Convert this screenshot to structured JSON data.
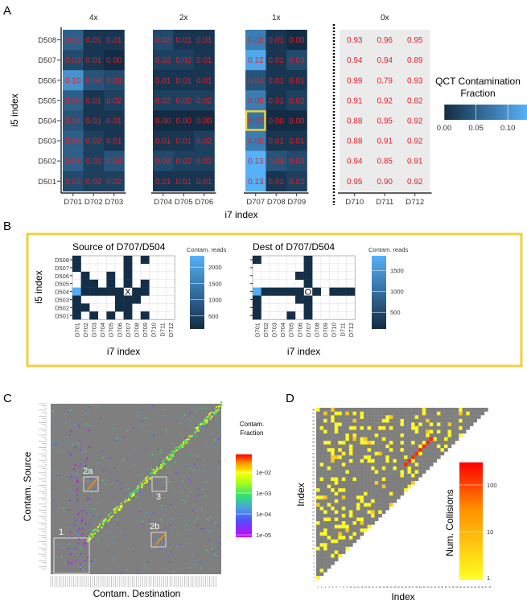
{
  "panel_labels": {
    "a": "A",
    "b": "B",
    "c": "C",
    "d": "D"
  },
  "colors": {
    "low": "#132B43",
    "high": "#56B1F7",
    "text": "#E0202A",
    "highlight": "#F0D040",
    "panel_bg": "#EBEBEB",
    "plot_gray": "#7F7F7F"
  },
  "chart_data": [
    {
      "type": "heatmap",
      "id": "A",
      "xlabel": "i7 index",
      "ylabel": "i5 index",
      "rows": [
        "D508",
        "D507",
        "D506",
        "D505",
        "D504",
        "D503",
        "D502",
        "D501"
      ],
      "legend": {
        "title_line1": "QCT Contamination",
        "title_line2": "Fraction",
        "ticks": [
          "0.00",
          "0.05",
          "0.10"
        ],
        "range": [
          0,
          0.13
        ]
      },
      "highlight": {
        "row": "D504",
        "col": "D707"
      },
      "facets": [
        {
          "label": "4x",
          "cols": [
            "D701",
            "D702",
            "D703"
          ],
          "values": [
            [
              0.05,
              0.01,
              0.01
            ],
            [
              0.03,
              0.01,
              0.0
            ],
            [
              0.1,
              0.04,
              0.03
            ],
            [
              0.05,
              0.01,
              0.02
            ],
            [
              0.04,
              0.01,
              0.01
            ],
            [
              0.05,
              0.02,
              0.01
            ],
            [
              0.05,
              0.02,
              0.04
            ],
            [
              0.03,
              0.02,
              0.02
            ]
          ]
        },
        {
          "label": "2x",
          "cols": [
            "D704",
            "D705",
            "D706"
          ],
          "values": [
            [
              0.03,
              0.01,
              0.01
            ],
            [
              0.02,
              0.02,
              0.01
            ],
            [
              0.01,
              0.01,
              0.01
            ],
            [
              0.02,
              0.02,
              0.02
            ],
            [
              0.0,
              0.0,
              0.0
            ],
            [
              0.01,
              0.01,
              0.02
            ],
            [
              0.03,
              0.02,
              0.02
            ],
            [
              0.01,
              0.01,
              0.01
            ]
          ]
        },
        {
          "label": "1x",
          "cols": [
            "D707",
            "D708",
            "D709"
          ],
          "values": [
            [
              0.08,
              0.01,
              0.0
            ],
            [
              0.12,
              0.01,
              0.03
            ],
            [
              0.04,
              0.01,
              0.01
            ],
            [
              0.08,
              0.01,
              0.02
            ],
            [
              0.07,
              0.0,
              0.0
            ],
            [
              0.08,
              0.01,
              0.01
            ],
            [
              0.13,
              0.04,
              0.03
            ],
            [
              0.13,
              0.01,
              0.02
            ]
          ]
        },
        {
          "label": "0x",
          "cols": [
            "D710",
            "D711",
            "D712"
          ],
          "gray": true,
          "values": [
            [
              0.93,
              0.96,
              0.95
            ],
            [
              0.94,
              0.94,
              0.89
            ],
            [
              0.99,
              0.79,
              0.93
            ],
            [
              0.91,
              0.92,
              0.82
            ],
            [
              0.88,
              0.95,
              0.92
            ],
            [
              0.88,
              0.91,
              0.92
            ],
            [
              0.94,
              0.85,
              0.91
            ],
            [
              0.95,
              0.9,
              0.92
            ]
          ]
        }
      ]
    },
    {
      "type": "heatmap",
      "id": "B-source",
      "title": "Source of D707/D504",
      "xlabel": "i7 index",
      "ylabel": "i5 index",
      "rows": [
        "D508",
        "D507",
        "D506",
        "D505",
        "D504",
        "D503",
        "D502",
        "D501"
      ],
      "cols": [
        "D701",
        "D702",
        "D703",
        "D704",
        "D705",
        "D706",
        "D707",
        "D708",
        "D709",
        "D710",
        "D711",
        "D712"
      ],
      "marker": {
        "text": "X",
        "row": "D504",
        "col": "D707"
      },
      "legend": {
        "title": "Contam. reads",
        "ticks": [
          500,
          1000,
          1500,
          2000
        ],
        "range": [
          100,
          2350
        ]
      },
      "values": [
        [
          150,
          0,
          0,
          0,
          0,
          0,
          150,
          0,
          150,
          0,
          0,
          0
        ],
        [
          150,
          0,
          0,
          0,
          0,
          0,
          150,
          0,
          0,
          0,
          0,
          0
        ],
        [
          0,
          150,
          0,
          0,
          150,
          0,
          150,
          0,
          0,
          0,
          0,
          0
        ],
        [
          0,
          150,
          150,
          0,
          150,
          0,
          150,
          0,
          150,
          0,
          0,
          0
        ],
        [
          2300,
          150,
          150,
          150,
          150,
          150,
          0,
          150,
          150,
          0,
          0,
          0
        ],
        [
          150,
          0,
          0,
          0,
          0,
          150,
          150,
          150,
          0,
          0,
          0,
          0
        ],
        [
          150,
          150,
          0,
          0,
          0,
          150,
          150,
          0,
          0,
          0,
          0,
          0
        ],
        [
          150,
          0,
          150,
          0,
          150,
          0,
          150,
          0,
          150,
          0,
          0,
          0
        ]
      ]
    },
    {
      "type": "heatmap",
      "id": "B-dest",
      "title": "Dest of D707/D504",
      "xlabel": "i7 index",
      "rows": [
        "D508",
        "D507",
        "D506",
        "D505",
        "D504",
        "D503",
        "D502",
        "D501"
      ],
      "cols": [
        "D701",
        "D702",
        "D703",
        "D704",
        "D705",
        "D706",
        "D707",
        "D708",
        "D709",
        "D710",
        "D711",
        "D712"
      ],
      "marker": {
        "text": "O",
        "row": "D504",
        "col": "D707"
      },
      "legend": {
        "title": "Contam. reads",
        "ticks": [
          500,
          1000,
          1500
        ],
        "range": [
          100,
          1850
        ]
      },
      "values": [
        [
          150,
          0,
          0,
          0,
          0,
          0,
          150,
          0,
          0,
          0,
          0,
          0
        ],
        [
          0,
          0,
          0,
          0,
          0,
          0,
          150,
          0,
          0,
          0,
          0,
          0
        ],
        [
          0,
          0,
          0,
          0,
          0,
          150,
          150,
          0,
          0,
          0,
          0,
          0
        ],
        [
          0,
          0,
          0,
          0,
          0,
          0,
          150,
          0,
          0,
          0,
          0,
          0
        ],
        [
          1800,
          150,
          150,
          150,
          150,
          150,
          0,
          150,
          0,
          150,
          150,
          150
        ],
        [
          150,
          0,
          0,
          0,
          0,
          150,
          150,
          0,
          0,
          0,
          0,
          0
        ],
        [
          150,
          0,
          0,
          0,
          0,
          0,
          150,
          0,
          0,
          0,
          0,
          0
        ],
        [
          150,
          0,
          0,
          0,
          150,
          0,
          150,
          0,
          0,
          0,
          0,
          0
        ]
      ]
    },
    {
      "type": "heatmap",
      "id": "C",
      "xlabel": "Contam. Destination",
      "ylabel": "Contam. Source",
      "legend": {
        "title_line1": "Contam.",
        "title_line2": "Fraction",
        "ticks": [
          "1e-02",
          "1e-03",
          "1e-04",
          "1e-05"
        ]
      },
      "annotations": [
        "1",
        "2a",
        "2b",
        "3"
      ]
    },
    {
      "type": "heatmap",
      "id": "D",
      "xlabel": "Index",
      "ylabel": "Index",
      "n": 48,
      "legend": {
        "title": "Num. Collisions",
        "ticks": [
          "100",
          "10",
          "1"
        ]
      },
      "high_collisions": [
        [
          25,
          33
        ],
        [
          26,
          34
        ],
        [
          27,
          35
        ],
        [
          28,
          36
        ],
        [
          29,
          37
        ],
        [
          30,
          38
        ],
        [
          31,
          39
        ],
        [
          32,
          40
        ]
      ]
    }
  ]
}
